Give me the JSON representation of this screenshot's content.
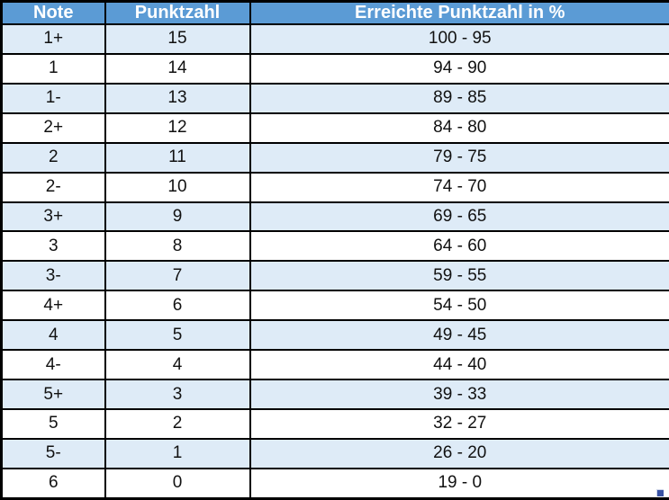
{
  "table": {
    "columns": [
      {
        "label": "Note"
      },
      {
        "label": "Punktzahl"
      },
      {
        "label": "Erreichte Punktzahl in %"
      }
    ],
    "rows": [
      {
        "note": "1+",
        "punktzahl": "15",
        "prozent": "100 - 95"
      },
      {
        "note": "1",
        "punktzahl": "14",
        "prozent": "94 - 90"
      },
      {
        "note": "1-",
        "punktzahl": "13",
        "prozent": "89 - 85"
      },
      {
        "note": "2+",
        "punktzahl": "12",
        "prozent": "84 - 80"
      },
      {
        "note": "2",
        "punktzahl": "11",
        "prozent": "79 - 75"
      },
      {
        "note": "2-",
        "punktzahl": "10",
        "prozent": "74 - 70"
      },
      {
        "note": "3+",
        "punktzahl": "9",
        "prozent": "69 - 65"
      },
      {
        "note": "3",
        "punktzahl": "8",
        "prozent": "64 - 60"
      },
      {
        "note": "3-",
        "punktzahl": "7",
        "prozent": "59 - 55"
      },
      {
        "note": "4+",
        "punktzahl": "6",
        "prozent": "54 - 50"
      },
      {
        "note": "4",
        "punktzahl": "5",
        "prozent": "49 - 45"
      },
      {
        "note": "4-",
        "punktzahl": "4",
        "prozent": "44 - 40"
      },
      {
        "note": "5+",
        "punktzahl": "3",
        "prozent": "39 - 33"
      },
      {
        "note": "5",
        "punktzahl": "2",
        "prozent": "32 - 27"
      },
      {
        "note": "5-",
        "punktzahl": "1",
        "prozent": "26 - 20"
      },
      {
        "note": "6",
        "punktzahl": "0",
        "prozent": "19 - 0"
      }
    ]
  },
  "colors": {
    "header_bg": "#5B9BD5",
    "header_text": "#FFFFFF",
    "row_band": "#DEEBF7",
    "row_plain": "#FFFFFF",
    "border": "#000000",
    "handle": "#3A53A4"
  }
}
